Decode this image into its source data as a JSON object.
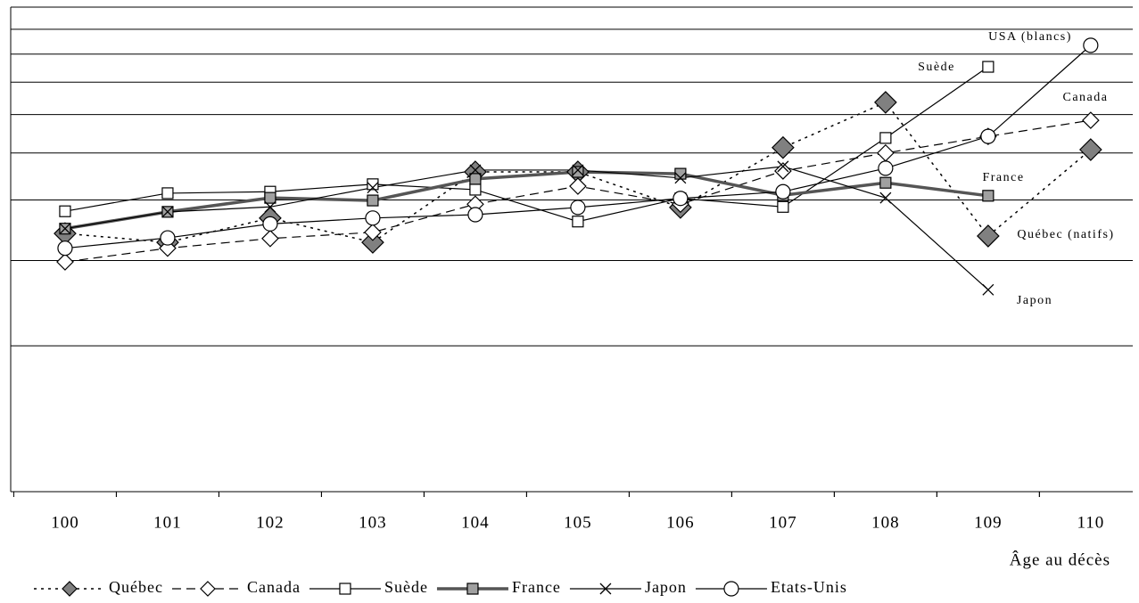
{
  "chart_data": {
    "type": "line",
    "x_label": "Âge au décès",
    "x": [
      100,
      101,
      102,
      103,
      104,
      105,
      106,
      107,
      108,
      109,
      110
    ],
    "xlim": [
      99.47,
      110.41
    ],
    "xticks": [
      100,
      101,
      102,
      103,
      104,
      105,
      106,
      107,
      108,
      109,
      110
    ],
    "ylim": [
      0.1,
      1
    ],
    "y_log_scale": true,
    "y_gridlines": [
      0.2,
      0.3,
      0.4,
      0.5,
      0.6,
      0.7,
      0.8,
      0.9,
      1
    ],
    "legend_position": "bottom",
    "series": [
      {
        "name": "Québec",
        "color": "#000000",
        "marker_color": "#808080",
        "marker": "diamond",
        "marker_size": 12,
        "dash": "dotted",
        "line_width": 1.5,
        "values": [
          0.341,
          0.327,
          0.367,
          0.327,
          0.457,
          0.457,
          0.386,
          0.513,
          0.636,
          0.337,
          0.508
        ]
      },
      {
        "name": "Canada",
        "color": "#000000",
        "marker_color": "#ffffff",
        "marker": "diamond",
        "marker_size": 9,
        "dash": "dashed",
        "line_width": 1.2,
        "values": [
          0.298,
          0.318,
          0.333,
          0.343,
          0.392,
          0.427,
          0.392,
          0.459,
          0.5,
          0.541,
          0.584
        ]
      },
      {
        "name": "Suède",
        "color": "#000000",
        "marker_color": "#ffffff",
        "marker": "square",
        "marker_size": 6,
        "dash": "solid",
        "line_width": 1.2,
        "values": [
          0.379,
          0.413,
          0.416,
          0.431,
          0.42,
          0.361,
          0.403,
          0.387,
          0.537,
          0.753,
          null
        ]
      },
      {
        "name": "France",
        "color": "#555555",
        "marker_color": "#a0a0a0",
        "marker": "square",
        "marker_size": 6,
        "dash": "solid",
        "line_width": 3.5,
        "values": [
          0.349,
          0.378,
          0.404,
          0.399,
          0.442,
          0.457,
          0.453,
          0.409,
          0.434,
          0.408,
          null
        ]
      },
      {
        "name": "Japon",
        "color": "#000000",
        "marker_color": "#000000",
        "marker": "x",
        "marker_size": 6,
        "dash": "solid",
        "line_width": 1.2,
        "values": [
          0.349,
          0.378,
          0.387,
          0.424,
          0.461,
          0.461,
          0.444,
          0.469,
          0.404,
          0.261,
          null
        ]
      },
      {
        "name": "Etats-Unis",
        "color": "#000000",
        "marker_color": "#ffffff",
        "marker": "circle",
        "marker_size": 8,
        "dash": "solid",
        "line_width": 1.2,
        "values": [
          0.318,
          0.334,
          0.357,
          0.367,
          0.373,
          0.386,
          0.403,
          0.416,
          0.465,
          0.541,
          0.834
        ]
      }
    ],
    "annotations": [
      "USA (blancs)",
      "Suède",
      "Canada",
      "France",
      "Québec (natifs)",
      "Japon"
    ]
  }
}
